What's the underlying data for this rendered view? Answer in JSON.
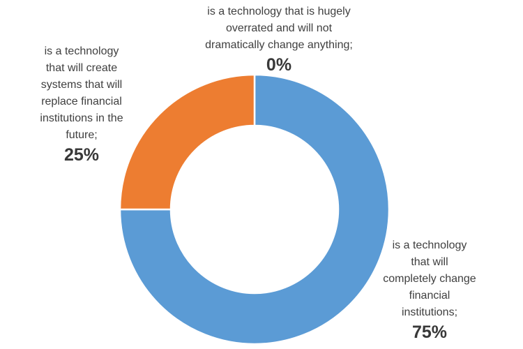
{
  "chart_data": {
    "type": "pie",
    "subtype": "donut",
    "title": "",
    "legend": "none",
    "categories": [
      "is a technology that will completely change financial institutions",
      "is a technology that will create systems that will replace financial institutions in the future",
      "is a technology that is hugely overrated and will not dramatically change anything"
    ],
    "values": [
      75,
      25,
      0
    ],
    "colors": [
      "#5B9BD5",
      "#ED7D31",
      "#A5A5A5"
    ],
    "start_angle_deg": -90,
    "direction": "clockwise",
    "inner_radius_ratio": 0.62,
    "slice_border_color": "#FFFFFF",
    "labels": [
      {
        "text": "is a technology\nthat will\ncompletely change\nfinancial\ninstitutions;",
        "value": "75%"
      },
      {
        "text": "is a technology\nthat will create\nsystems that will\nreplace financial\ninstitutions in the\nfuture;",
        "value": "25%"
      },
      {
        "text": "is a technology that is hugely\noverrated and will not\ndramatically change anything;",
        "value": "0%"
      }
    ]
  }
}
